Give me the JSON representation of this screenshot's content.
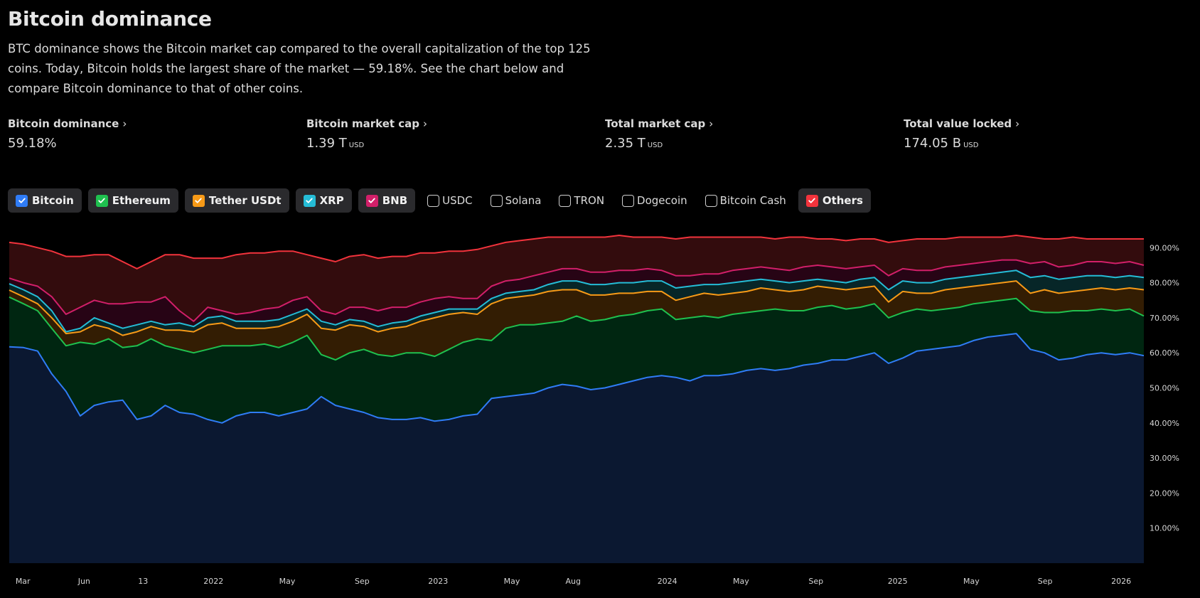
{
  "header": {
    "title": "Bitcoin dominance",
    "description": "BTC dominance shows the Bitcoin market cap compared to the overall capitalization of the top 125 coins. Today, Bitcoin holds the largest share of the market — 59.18%. See the chart below and compare Bitcoin dominance to that of other coins."
  },
  "stats": [
    {
      "label": "Bitcoin dominance",
      "value": "59.18%",
      "unit": ""
    },
    {
      "label": "Bitcoin market cap",
      "value": "1.39 T",
      "unit": "USD"
    },
    {
      "label": "Total market cap",
      "value": "2.35 T",
      "unit": "USD"
    },
    {
      "label": "Total value locked",
      "value": "174.05 B",
      "unit": "USD"
    }
  ],
  "chevron_icon": "chevron-right-icon",
  "legend_chips": [
    {
      "label": "Bitcoin",
      "checked": true,
      "color": "#2f7cf6"
    },
    {
      "label": "Ethereum",
      "checked": true,
      "color": "#1fc14f"
    },
    {
      "label": "Tether USDt",
      "checked": true,
      "color": "#f79a17"
    },
    {
      "label": "XRP",
      "checked": true,
      "color": "#25bcd6"
    },
    {
      "label": "BNB",
      "checked": true,
      "color": "#d11f69"
    },
    {
      "label": "USDC",
      "checked": false,
      "color": ""
    },
    {
      "label": "Solana",
      "checked": false,
      "color": ""
    },
    {
      "label": "TRON",
      "checked": false,
      "color": ""
    },
    {
      "label": "Dogecoin",
      "checked": false,
      "color": ""
    },
    {
      "label": "Bitcoin Cash",
      "checked": false,
      "color": ""
    },
    {
      "label": "Others",
      "checked": true,
      "color": "#f2333c"
    }
  ],
  "chart_data": {
    "type": "area",
    "stacked": true,
    "title": "Bitcoin dominance",
    "xlabel": "",
    "ylabel": "",
    "ylim": [
      0,
      100
    ],
    "y_ticks": [
      "10.00%",
      "20.00%",
      "30.00%",
      "40.00%",
      "50.00%",
      "60.00%",
      "70.00%",
      "80.00%",
      "90.00%"
    ],
    "y_tick_values": [
      10,
      20,
      30,
      40,
      50,
      60,
      70,
      80,
      90
    ],
    "x_ticks": [
      {
        "label": "Mar",
        "pos": 0.012
      },
      {
        "label": "Jun",
        "pos": 0.066
      },
      {
        "label": "13",
        "pos": 0.118
      },
      {
        "label": "2022",
        "pos": 0.18
      },
      {
        "label": "May",
        "pos": 0.245
      },
      {
        "label": "Sep",
        "pos": 0.311
      },
      {
        "label": "2023",
        "pos": 0.378
      },
      {
        "label": "May",
        "pos": 0.443
      },
      {
        "label": "Aug",
        "pos": 0.497
      },
      {
        "label": "2024",
        "pos": 0.58
      },
      {
        "label": "May",
        "pos": 0.645
      },
      {
        "label": "Sep",
        "pos": 0.711
      },
      {
        "label": "2025",
        "pos": 0.783
      },
      {
        "label": "May",
        "pos": 0.848
      },
      {
        "label": "Sep",
        "pos": 0.913
      },
      {
        "label": "2026",
        "pos": 0.98
      }
    ],
    "x_range": [
      "2021-03",
      "2026-01"
    ],
    "grid": false,
    "legend": "top-left",
    "series_note": "values are cumulative stacked tops in percent",
    "series": [
      {
        "name": "Others",
        "color": "#f2333c",
        "fill": "#330c0d",
        "values": [
          91.5,
          91,
          90,
          89,
          87.5,
          87.5,
          88,
          88,
          86,
          84,
          86,
          88,
          88,
          87,
          87,
          87,
          88,
          88.5,
          88.5,
          89,
          89,
          88,
          87,
          86,
          87.5,
          88,
          87,
          87.5,
          87.5,
          88.5,
          88.5,
          89,
          89,
          89.5,
          90.5,
          91.5,
          92,
          92.5,
          93,
          93,
          93,
          93,
          93,
          93.5,
          93,
          93,
          93,
          92.5,
          93,
          93,
          93,
          93,
          93,
          93,
          92.5,
          93,
          93,
          92.5,
          92.5,
          92,
          92.5,
          92.5,
          91.5,
          92,
          92.5,
          92.5,
          92.5,
          93,
          93,
          93,
          93,
          93.5,
          93,
          92.5,
          92.5,
          93,
          92.5,
          92.5,
          92.5,
          92.5,
          92.5
        ]
      },
      {
        "name": "BNB",
        "color": "#d11f69",
        "fill": "#270415",
        "values": [
          81.3,
          80,
          79,
          76,
          71,
          73,
          75,
          74,
          74,
          74.5,
          74.5,
          76,
          72,
          69,
          73,
          72,
          71,
          71.5,
          72.5,
          73,
          75,
          76,
          72,
          71,
          73,
          73,
          72,
          73,
          73,
          74.5,
          75.5,
          76,
          75.5,
          75.5,
          79,
          80.5,
          81,
          82,
          83,
          84,
          84,
          83,
          83,
          83.5,
          83.5,
          84,
          83.5,
          82,
          82,
          82.5,
          82.5,
          83.5,
          84,
          84.5,
          84,
          83.5,
          84.5,
          85,
          84.5,
          84,
          84.5,
          85,
          82,
          84,
          83.5,
          83.5,
          84.5,
          85,
          85.5,
          86,
          86.5,
          86.5,
          85.5,
          86,
          84.5,
          85,
          86,
          86,
          85.5,
          86,
          85
        ]
      },
      {
        "name": "XRP",
        "color": "#25bcd6",
        "fill": "#072628",
        "values": [
          79.7,
          78,
          76,
          72,
          66,
          67,
          70,
          68.5,
          67,
          68,
          69,
          68,
          68.5,
          67.5,
          70,
          70.5,
          69,
          69,
          69,
          69.5,
          71,
          72.5,
          69,
          68,
          69.5,
          69,
          67.5,
          68.5,
          69,
          70.5,
          71.5,
          72.5,
          72.5,
          72.5,
          75.5,
          77,
          77.5,
          78,
          79.5,
          80.5,
          80.5,
          79.5,
          79.5,
          80,
          80,
          80.5,
          80.5,
          78.5,
          79,
          79.5,
          79.5,
          80,
          80.5,
          81,
          80.5,
          80,
          80.5,
          81,
          80.5,
          80,
          81,
          81.5,
          78,
          80.5,
          80,
          80,
          81,
          81.5,
          82,
          82.5,
          83,
          83.5,
          81.5,
          82,
          81,
          81.5,
          82,
          82,
          81.5,
          82,
          81.5
        ]
      },
      {
        "name": "Tether USDt",
        "color": "#f79a17",
        "fill": "#331d03",
        "values": [
          77.9,
          76,
          74,
          70,
          65.5,
          66,
          68,
          67,
          65,
          66,
          67.5,
          66.5,
          66.5,
          66,
          68,
          68.5,
          67,
          67,
          67,
          67.5,
          69,
          71,
          67,
          66.5,
          68,
          67.5,
          66,
          67,
          67.5,
          69,
          70,
          71,
          71.5,
          71,
          74,
          75.5,
          76,
          76.5,
          77.5,
          78,
          78,
          76.5,
          76.5,
          77,
          77,
          77.5,
          77.5,
          75,
          76,
          77,
          76.5,
          77,
          77.5,
          78.5,
          78,
          77.5,
          78,
          79,
          78.5,
          78,
          78.5,
          79,
          74.5,
          77.5,
          77,
          77,
          78,
          78.5,
          79,
          79.5,
          80,
          80.5,
          77,
          78,
          77,
          77.5,
          78,
          78.5,
          78,
          78.5,
          78
        ]
      },
      {
        "name": "Ethereum",
        "color": "#1fc14f",
        "fill": "#002611",
        "values": [
          75.9,
          74,
          72,
          67,
          62,
          63,
          62.5,
          64,
          61.5,
          62,
          64,
          62,
          61,
          60,
          61,
          62,
          62,
          62,
          62.5,
          61.5,
          63,
          65,
          59.5,
          58,
          60,
          61,
          59.5,
          59,
          60,
          60,
          59,
          61,
          63,
          64,
          63.5,
          67,
          68,
          68,
          68.5,
          69,
          70.5,
          69,
          69.5,
          70.5,
          71,
          72,
          72.5,
          69.5,
          70,
          70.5,
          70,
          71,
          71.5,
          72,
          72.5,
          72,
          72,
          73,
          73.5,
          72.5,
          73,
          74,
          70,
          71.5,
          72.5,
          72,
          72.5,
          73,
          74,
          74.5,
          75,
          75.5,
          72,
          71.5,
          71.5,
          72,
          72,
          72.5,
          72,
          72.5,
          70.5
        ]
      },
      {
        "name": "Bitcoin",
        "color": "#2f7cf6",
        "fill": "#0b1831",
        "values": [
          61.7,
          61.5,
          60.5,
          54,
          49,
          42,
          45,
          46,
          46.5,
          41,
          42,
          45,
          43,
          42.5,
          41,
          40,
          42,
          43,
          43,
          42,
          43,
          44,
          47.5,
          45,
          44,
          43,
          41.5,
          41,
          41,
          41.5,
          40.5,
          41,
          42,
          42.5,
          47,
          47.5,
          48,
          48.5,
          50,
          51,
          50.5,
          49.5,
          50,
          51,
          52,
          53,
          53.5,
          53,
          52,
          53.5,
          53.5,
          54,
          55,
          55.5,
          55,
          55.5,
          56.5,
          57,
          58,
          58,
          59,
          60,
          57,
          58.5,
          60.5,
          61,
          61.5,
          62,
          63.5,
          64.5,
          65,
          65.5,
          61,
          60,
          58,
          58.5,
          59.5,
          60,
          59.5,
          60,
          59.18
        ]
      }
    ]
  }
}
